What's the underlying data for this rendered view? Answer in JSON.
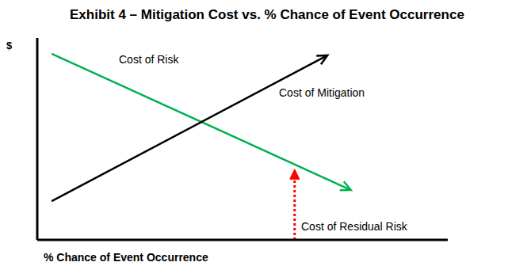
{
  "chart_data": {
    "type": "line",
    "title": "Exhibit 4 – Mitigation Cost vs. % Chance of Event Occurrence",
    "x_label": "% Chance of Event Occurrence",
    "y_label": "$",
    "xlim": [
      0,
      100
    ],
    "ylim": [
      0,
      100
    ],
    "tick_labels": false,
    "grid": false,
    "series": [
      {
        "name": "Cost of Risk",
        "color": "#00b050",
        "x": [
          3.5,
          76.4
        ],
        "values": [
          92.2,
          24.7
        ],
        "marker": "arrow",
        "line_style": "solid"
      },
      {
        "name": "Cost of Mitigation",
        "color": "#000000",
        "x": [
          3.5,
          70.7
        ],
        "values": [
          19.2,
          91.4
        ],
        "marker": "arrow",
        "line_style": "solid"
      },
      {
        "name": "Cost of Residual Risk",
        "color": "#ff0000",
        "x": [
          62.7,
          62.7
        ],
        "values": [
          0,
          35
        ],
        "marker": "arrow",
        "line_style": "dotted"
      }
    ]
  }
}
